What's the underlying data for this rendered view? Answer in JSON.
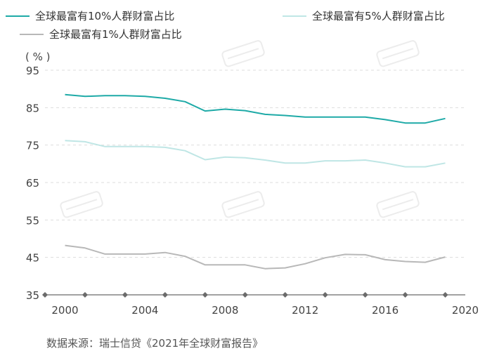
{
  "source": "数据来源：瑞士信贷《2021年全球财富报告》",
  "colors": {
    "s1": "#1eaaa7",
    "s2": "#bfe6e5",
    "s3": "#b8b8b8",
    "grid": "#dddddd",
    "axis": "#6b6b6b"
  },
  "chart_data": {
    "type": "line",
    "unit_label": "( % )",
    "x_ticks": [
      "2000",
      "2004",
      "2008",
      "2012",
      "2016",
      "2020"
    ],
    "y_ticks": [
      "95",
      "85",
      "75",
      "65",
      "55",
      "45",
      "35"
    ],
    "ylim": [
      35,
      95
    ],
    "xlim": [
      1999,
      2020
    ],
    "grid": true,
    "legend": "top",
    "series": [
      {
        "name": "全球最富有10%人群财富占比",
        "color": "#1eaaa7",
        "x": [
          2000,
          2001,
          2002,
          2003,
          2004,
          2005,
          2006,
          2007,
          2008,
          2009,
          2010,
          2011,
          2012,
          2013,
          2014,
          2015,
          2016,
          2017,
          2018,
          2019
        ],
        "values": [
          88.5,
          88.0,
          88.2,
          88.2,
          88.0,
          87.5,
          86.6,
          84.1,
          84.6,
          84.2,
          83.2,
          82.9,
          82.5,
          82.5,
          82.5,
          82.5,
          81.8,
          80.9,
          80.9,
          82.1
        ]
      },
      {
        "name": "全球最富有5%人群财富占比",
        "color": "#bfe6e5",
        "x": [
          2000,
          2001,
          2002,
          2003,
          2004,
          2005,
          2006,
          2007,
          2008,
          2009,
          2010,
          2011,
          2012,
          2013,
          2014,
          2015,
          2016,
          2017,
          2018,
          2019
        ],
        "values": [
          76.2,
          75.9,
          74.6,
          74.6,
          74.6,
          74.4,
          73.5,
          71.1,
          71.8,
          71.6,
          71.0,
          70.2,
          70.2,
          70.8,
          70.8,
          71.0,
          70.2,
          69.2,
          69.2,
          70.2
        ]
      },
      {
        "name": "全球最富有1%人群财富占比",
        "color": "#b8b8b8",
        "x": [
          2000,
          2001,
          2002,
          2003,
          2004,
          2005,
          2006,
          2007,
          2008,
          2009,
          2010,
          2011,
          2012,
          2013,
          2014,
          2015,
          2016,
          2017,
          2018,
          2019
        ],
        "values": [
          48.2,
          47.5,
          45.9,
          45.9,
          45.9,
          46.3,
          45.3,
          43.0,
          43.0,
          43.0,
          42.0,
          42.2,
          43.3,
          44.9,
          45.8,
          45.7,
          44.4,
          43.9,
          43.7,
          45.1
        ]
      }
    ]
  }
}
